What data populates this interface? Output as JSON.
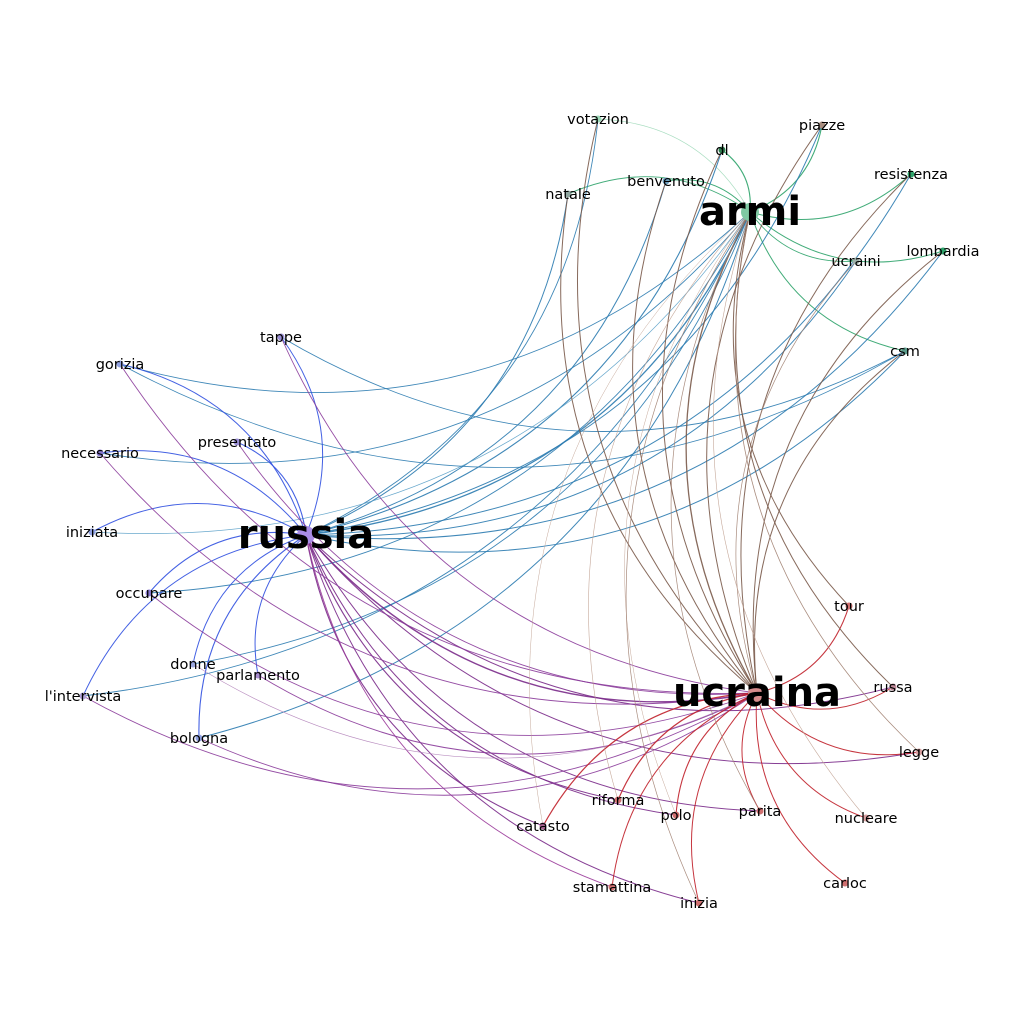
{
  "hubs": [
    {
      "id": "armi",
      "label": "armi",
      "color": "#7fc9a3"
    },
    {
      "id": "russia",
      "label": "russia",
      "color": "#a98ce6"
    },
    {
      "id": "ucraina",
      "label": "ucraina",
      "color": "#d68c8c"
    }
  ],
  "nodes": [
    {
      "label": "votazion",
      "color": "#9fd9b9"
    },
    {
      "label": "piazze",
      "color": "#a98e80"
    },
    {
      "label": "dl",
      "color": "#2e7d4f"
    },
    {
      "label": "resistenza",
      "color": "#2ea36a"
    },
    {
      "label": "natale",
      "color": "#8fa6a0"
    },
    {
      "label": "benvenuto",
      "color": "#6f9fbf"
    },
    {
      "label": "lombardia",
      "color": "#2ea36a"
    },
    {
      "label": "ucraini",
      "color": "#9fb2aa"
    },
    {
      "label": "csm",
      "color": "#5a9a8a"
    },
    {
      "label": "tappe",
      "color": "#9a8fd6"
    },
    {
      "label": "gorizia",
      "color": "#8fa0e0"
    },
    {
      "label": "presentato",
      "color": "#9a8fd6"
    },
    {
      "label": "necessario",
      "color": "#8a7ad0"
    },
    {
      "label": "iniziata",
      "color": "#8fa0e0"
    },
    {
      "label": "occupare",
      "color": "#8a7ad0"
    },
    {
      "label": "donne",
      "color": "#9aa6de"
    },
    {
      "label": "parlamento",
      "color": "#a88ccf"
    },
    {
      "label": "l'intervista",
      "color": "#b0a0d8"
    },
    {
      "label": "bologna",
      "color": "#8fa0e0"
    },
    {
      "label": "tour",
      "color": "#d07070"
    },
    {
      "label": "russa",
      "color": "#c08a9a"
    },
    {
      "label": "legge",
      "color": "#d8a0a0"
    },
    {
      "label": "riforma",
      "color": "#d07070"
    },
    {
      "label": "polo",
      "color": "#d07070"
    },
    {
      "label": "parita",
      "color": "#d07070"
    },
    {
      "label": "catasto",
      "color": "#a86090"
    },
    {
      "label": "nucleare",
      "color": "#d8a0a0"
    },
    {
      "label": "carloc",
      "color": "#d07070"
    },
    {
      "label": "stamattina",
      "color": "#d07070"
    },
    {
      "label": "inizia",
      "color": "#d07070"
    }
  ],
  "edges": [
    {
      "a": "armi",
      "b": "dl",
      "color": "#2ea36a",
      "w": 1.1
    },
    {
      "a": "armi",
      "b": "piazze",
      "color": "#2ea36a",
      "w": 1.1
    },
    {
      "a": "armi",
      "b": "resistenza",
      "color": "#2ea36a",
      "w": 1.0
    },
    {
      "a": "armi",
      "b": "lombardia",
      "color": "#2ea36a",
      "w": 1.0
    },
    {
      "a": "armi",
      "b": "csm",
      "color": "#2ea36a",
      "w": 1.0
    },
    {
      "a": "armi",
      "b": "ucraini",
      "color": "#2ea36a",
      "w": 0.9
    },
    {
      "a": "armi",
      "b": "natale",
      "color": "#2ea36a",
      "w": 0.9
    },
    {
      "a": "armi",
      "b": "benvenuto",
      "color": "#2ea36a",
      "w": 0.9
    },
    {
      "a": "armi",
      "b": "votazion",
      "color": "#9fd9b9",
      "w": 0.7
    },
    {
      "a": "russia",
      "b": "votazion",
      "color": "#2b7bb0",
      "w": 0.9
    },
    {
      "a": "russia",
      "b": "piazze",
      "color": "#2b7bb0",
      "w": 1.0
    },
    {
      "a": "russia",
      "b": "dl",
      "color": "#2b7bb0",
      "w": 1.1
    },
    {
      "a": "russia",
      "b": "natale",
      "color": "#2b7bb0",
      "w": 1.0
    },
    {
      "a": "russia",
      "b": "benvenuto",
      "color": "#2b7bb0",
      "w": 1.0
    },
    {
      "a": "russia",
      "b": "resistenza",
      "color": "#2b7bb0",
      "w": 1.0
    },
    {
      "a": "russia",
      "b": "lombardia",
      "color": "#2b7bb0",
      "w": 1.0
    },
    {
      "a": "russia",
      "b": "ucraini",
      "color": "#2b7bb0",
      "w": 1.0
    },
    {
      "a": "russia",
      "b": "csm",
      "color": "#2b7bb0",
      "w": 1.0
    },
    {
      "a": "russia",
      "b": "armi",
      "color": "#2b7bb0",
      "w": 1.3
    },
    {
      "a": "gorizia",
      "b": "armi",
      "color": "#2b7bb0",
      "w": 0.9
    },
    {
      "a": "necessario",
      "b": "armi",
      "color": "#2b7bb0",
      "w": 0.9
    },
    {
      "a": "iniziata",
      "b": "armi",
      "color": "#5aa0c8",
      "w": 0.7
    },
    {
      "a": "occupare",
      "b": "armi",
      "color": "#2b7bb0",
      "w": 0.9
    },
    {
      "a": "donne",
      "b": "armi",
      "color": "#2b7bb0",
      "w": 0.9
    },
    {
      "a": "l'intervista",
      "b": "armi",
      "color": "#2b7bb0",
      "w": 0.9
    },
    {
      "a": "bologna",
      "b": "armi",
      "color": "#2b7bb0",
      "w": 1.0
    },
    {
      "a": "tappe",
      "b": "csm",
      "color": "#2b7bb0",
      "w": 0.9
    },
    {
      "a": "gorizia",
      "b": "csm",
      "color": "#2b7bb0",
      "w": 0.8
    },
    {
      "a": "russia",
      "b": "tappe",
      "color": "#3050e0",
      "w": 1.0
    },
    {
      "a": "russia",
      "b": "gorizia",
      "color": "#3050e0",
      "w": 1.0
    },
    {
      "a": "russia",
      "b": "presentato",
      "color": "#3050e0",
      "w": 1.1
    },
    {
      "a": "russia",
      "b": "necessario",
      "color": "#3050e0",
      "w": 1.0
    },
    {
      "a": "russia",
      "b": "iniziata",
      "color": "#3050e0",
      "w": 1.0
    },
    {
      "a": "russia",
      "b": "occupare",
      "color": "#3050e0",
      "w": 1.1
    },
    {
      "a": "russia",
      "b": "donne",
      "color": "#3050e0",
      "w": 1.0
    },
    {
      "a": "russia",
      "b": "parlamento",
      "color": "#3050e0",
      "w": 1.0
    },
    {
      "a": "russia",
      "b": "l'intervista",
      "color": "#3050e0",
      "w": 1.0
    },
    {
      "a": "russia",
      "b": "bologna",
      "color": "#3050e0",
      "w": 1.1
    },
    {
      "a": "russia",
      "b": "ucraina",
      "color": "#7a2a8a",
      "w": 1.4
    },
    {
      "a": "russia",
      "b": "russa",
      "color": "#7a2a8a",
      "w": 1.0
    },
    {
      "a": "russia",
      "b": "legge",
      "color": "#7a2a8a",
      "w": 1.0
    },
    {
      "a": "russia",
      "b": "catasto",
      "color": "#7a2a8a",
      "w": 1.1
    },
    {
      "a": "russia",
      "b": "riforma",
      "color": "#7a2a8a",
      "w": 1.1
    },
    {
      "a": "russia",
      "b": "polo",
      "color": "#7a2a8a",
      "w": 1.0
    },
    {
      "a": "russia",
      "b": "parita",
      "color": "#7a2a8a",
      "w": 1.0
    },
    {
      "a": "russia",
      "b": "stamattina",
      "color": "#9a3a9a",
      "w": 0.9
    },
    {
      "a": "russia",
      "b": "inizia",
      "color": "#7a2a8a",
      "w": 1.0
    },
    {
      "a": "gorizia",
      "b": "ucraina",
      "color": "#8a3a9a",
      "w": 0.9
    },
    {
      "a": "necessario",
      "b": "ucraina",
      "color": "#8a3a9a",
      "w": 0.9
    },
    {
      "a": "occupare",
      "b": "ucraina",
      "color": "#8a3a9a",
      "w": 0.9
    },
    {
      "a": "presentato",
      "b": "ucraina",
      "color": "#8a3a9a",
      "w": 0.9
    },
    {
      "a": "parlamento",
      "b": "ucraina",
      "color": "#8a3a9a",
      "w": 1.0
    },
    {
      "a": "l'intervista",
      "b": "ucraina",
      "color": "#8a3a9a",
      "w": 0.9
    },
    {
      "a": "bologna",
      "b": "ucraina",
      "color": "#8a3a9a",
      "w": 0.9
    },
    {
      "a": "tappe",
      "b": "ucraina",
      "color": "#8a3a9a",
      "w": 0.9
    },
    {
      "a": "donne",
      "b": "ucraina",
      "color": "#b080b8",
      "w": 0.6
    },
    {
      "a": "ucraina",
      "b": "tour",
      "color": "#c0202a",
      "w": 1.1
    },
    {
      "a": "ucraina",
      "b": "russa",
      "color": "#c0202a",
      "w": 1.0
    },
    {
      "a": "ucraina",
      "b": "legge",
      "color": "#c0202a",
      "w": 1.0
    },
    {
      "a": "ucraina",
      "b": "riforma",
      "color": "#c0202a",
      "w": 1.2
    },
    {
      "a": "ucraina",
      "b": "polo",
      "color": "#c0202a",
      "w": 1.1
    },
    {
      "a": "ucraina",
      "b": "parita",
      "color": "#c0202a",
      "w": 1.0
    },
    {
      "a": "ucraina",
      "b": "catasto",
      "color": "#c0202a",
      "w": 1.2
    },
    {
      "a": "ucraina",
      "b": "nucleare",
      "color": "#c0202a",
      "w": 1.0
    },
    {
      "a": "ucraina",
      "b": "carloc",
      "color": "#c0202a",
      "w": 1.0
    },
    {
      "a": "ucraina",
      "b": "stamattina",
      "color": "#c0202a",
      "w": 1.0
    },
    {
      "a": "ucraina",
      "b": "inizia",
      "color": "#c0202a",
      "w": 1.0
    },
    {
      "a": "armi",
      "b": "ucraina",
      "color": "#7a5a4a",
      "w": 1.3
    },
    {
      "a": "votazion",
      "b": "ucraina",
      "color": "#7a5a4a",
      "w": 1.0
    },
    {
      "a": "piazze",
      "b": "ucraina",
      "color": "#7a5a4a",
      "w": 1.0
    },
    {
      "a": "natale",
      "b": "ucraina",
      "color": "#7a5a4a",
      "w": 1.0
    },
    {
      "a": "benvenuto",
      "b": "ucraina",
      "color": "#7a5a4a",
      "w": 1.0
    },
    {
      "a": "dl",
      "b": "ucraina",
      "color": "#7a5a4a",
      "w": 1.0
    },
    {
      "a": "resistenza",
      "b": "ucraina",
      "color": "#7a5a4a",
      "w": 1.0
    },
    {
      "a": "lombardia",
      "b": "ucraina",
      "color": "#7a5a4a",
      "w": 1.0
    },
    {
      "a": "csm",
      "b": "ucraina",
      "color": "#7a5a4a",
      "w": 1.0
    },
    {
      "a": "ucraini",
      "b": "ucraina",
      "color": "#a08070",
      "w": 0.7
    },
    {
      "a": "armi",
      "b": "tour",
      "color": "#7a5a4a",
      "w": 1.0
    },
    {
      "a": "armi",
      "b": "russa",
      "color": "#7a5a4a",
      "w": 1.0
    },
    {
      "a": "armi",
      "b": "legge",
      "color": "#a08070",
      "w": 0.8
    },
    {
      "a": "armi",
      "b": "nucleare",
      "color": "#c0a090",
      "w": 0.6
    },
    {
      "a": "armi",
      "b": "riforma",
      "color": "#c0a090",
      "w": 0.6
    },
    {
      "a": "armi",
      "b": "catasto",
      "color": "#c0a090",
      "w": 0.5
    },
    {
      "a": "armi",
      "b": "polo",
      "color": "#c0a090",
      "w": 0.5
    },
    {
      "a": "armi",
      "b": "parita",
      "color": "#a08070",
      "w": 0.7
    },
    {
      "a": "armi",
      "b": "inizia",
      "color": "#a08070",
      "w": 0.7
    }
  ]
}
